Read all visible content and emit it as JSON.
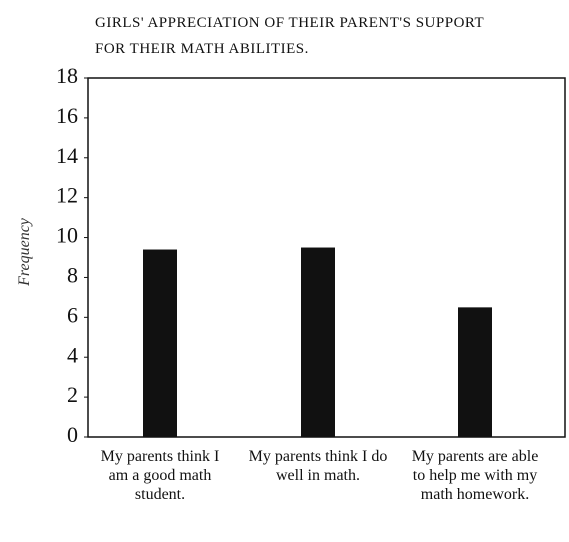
{
  "chart_data": {
    "type": "bar",
    "title": "GIRLS' APPRECIATION OF THEIR PARENT'S SUPPORT FOR THEIR MATH ABILITIES.",
    "y_label": "Frequency",
    "categories": [
      "My parents think I am a good math student.",
      "My parents think I do well in math.",
      "My parents are able to help me with my math homework."
    ],
    "values": [
      9.4,
      9.5,
      6.5
    ],
    "color": "#111111",
    "ylim": [
      0,
      18
    ],
    "yticks": [
      0,
      2,
      4,
      6,
      8,
      10,
      12,
      14,
      16,
      18
    ]
  }
}
